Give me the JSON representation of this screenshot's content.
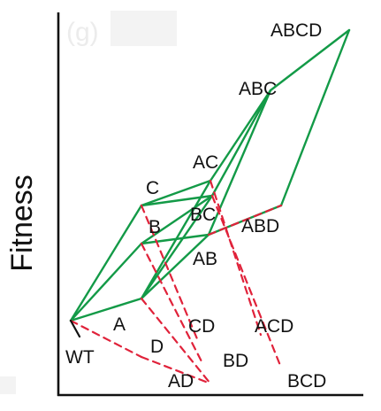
{
  "panel_label": "(g)",
  "y_axis_label": "Fitness",
  "colors": {
    "green_edge": "#139a47",
    "red_dashed_edge": "#e0223a",
    "axis": "#111111",
    "wt_edge": "#111111"
  },
  "nodes": [
    {
      "id": "WT",
      "label": "WT"
    },
    {
      "id": "A",
      "label": "A"
    },
    {
      "id": "B",
      "label": "B"
    },
    {
      "id": "C",
      "label": "C"
    },
    {
      "id": "D",
      "label": "D"
    },
    {
      "id": "AB",
      "label": "AB"
    },
    {
      "id": "AC",
      "label": "AC"
    },
    {
      "id": "BC",
      "label": "BC"
    },
    {
      "id": "AD",
      "label": "AD"
    },
    {
      "id": "BD",
      "label": "BD"
    },
    {
      "id": "CD",
      "label": "CD"
    },
    {
      "id": "ABC",
      "label": "ABC"
    },
    {
      "id": "ABD",
      "label": "ABD"
    },
    {
      "id": "ACD",
      "label": "ACD"
    },
    {
      "id": "BCD",
      "label": "BCD"
    },
    {
      "id": "ABCD",
      "label": "ABCD"
    }
  ],
  "green_edges": [
    [
      "WT",
      "A"
    ],
    [
      "WT",
      "B"
    ],
    [
      "WT",
      "C"
    ],
    [
      "A",
      "AB"
    ],
    [
      "A",
      "AC"
    ],
    [
      "A",
      "BC"
    ],
    [
      "B",
      "AB"
    ],
    [
      "B",
      "BC"
    ],
    [
      "C",
      "AC"
    ],
    [
      "C",
      "BC"
    ],
    [
      "AB",
      "ABC"
    ],
    [
      "AC",
      "ABC"
    ],
    [
      "BC",
      "ABC"
    ],
    [
      "AB",
      "ABD"
    ],
    [
      "ABC",
      "ABCD"
    ],
    [
      "ABD",
      "ABCD"
    ]
  ],
  "red_dashed_edges": [
    [
      "WT",
      "D"
    ],
    [
      "D",
      "AD"
    ],
    [
      "A",
      "AD"
    ],
    [
      "B",
      "BD"
    ],
    [
      "C",
      "CD"
    ],
    [
      "AC",
      "ACD"
    ],
    [
      "BC",
      "BCD"
    ],
    [
      "AB",
      "ABD"
    ]
  ]
}
